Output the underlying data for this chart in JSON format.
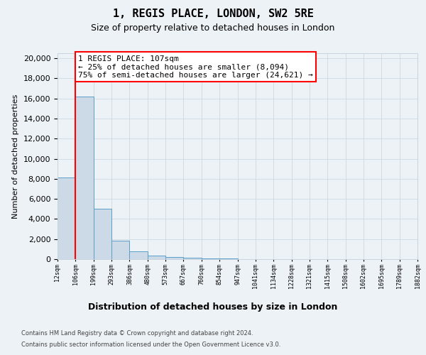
{
  "title": "1, REGIS PLACE, LONDON, SW2 5RE",
  "subtitle": "Size of property relative to detached houses in London",
  "xlabel": "Distribution of detached houses by size in London",
  "ylabel": "Number of detached properties",
  "bar_values": [
    8094,
    16200,
    5000,
    1850,
    800,
    380,
    200,
    150,
    100,
    100,
    0,
    0,
    0,
    0,
    0,
    0,
    0,
    0,
    0,
    0
  ],
  "bar_labels": [
    "12sqm",
    "106sqm",
    "199sqm",
    "293sqm",
    "386sqm",
    "480sqm",
    "573sqm",
    "667sqm",
    "760sqm",
    "854sqm",
    "947sqm",
    "1041sqm",
    "1134sqm",
    "1228sqm",
    "1321sqm",
    "1415sqm",
    "1508sqm",
    "1602sqm",
    "1695sqm",
    "1789sqm",
    "1882sqm"
  ],
  "bar_color": "#ccdae8",
  "bar_edge_color": "#5a9ec8",
  "red_line_bar_index": 1,
  "annotation_line1": "1 REGIS PLACE: 107sqm",
  "annotation_line2": "← 25% of detached houses are smaller (8,094)",
  "annotation_line3": "75% of semi-detached houses are larger (24,621) →",
  "ylim_max": 20500,
  "footnote1": "Contains HM Land Registry data © Crown copyright and database right 2024.",
  "footnote2": "Contains public sector information licensed under the Open Government Licence v3.0.",
  "bg_color": "#edf2f7",
  "grid_color": "#c8d4de",
  "yticks": [
    0,
    2000,
    4000,
    6000,
    8000,
    10000,
    12000,
    14000,
    16000,
    18000,
    20000
  ]
}
